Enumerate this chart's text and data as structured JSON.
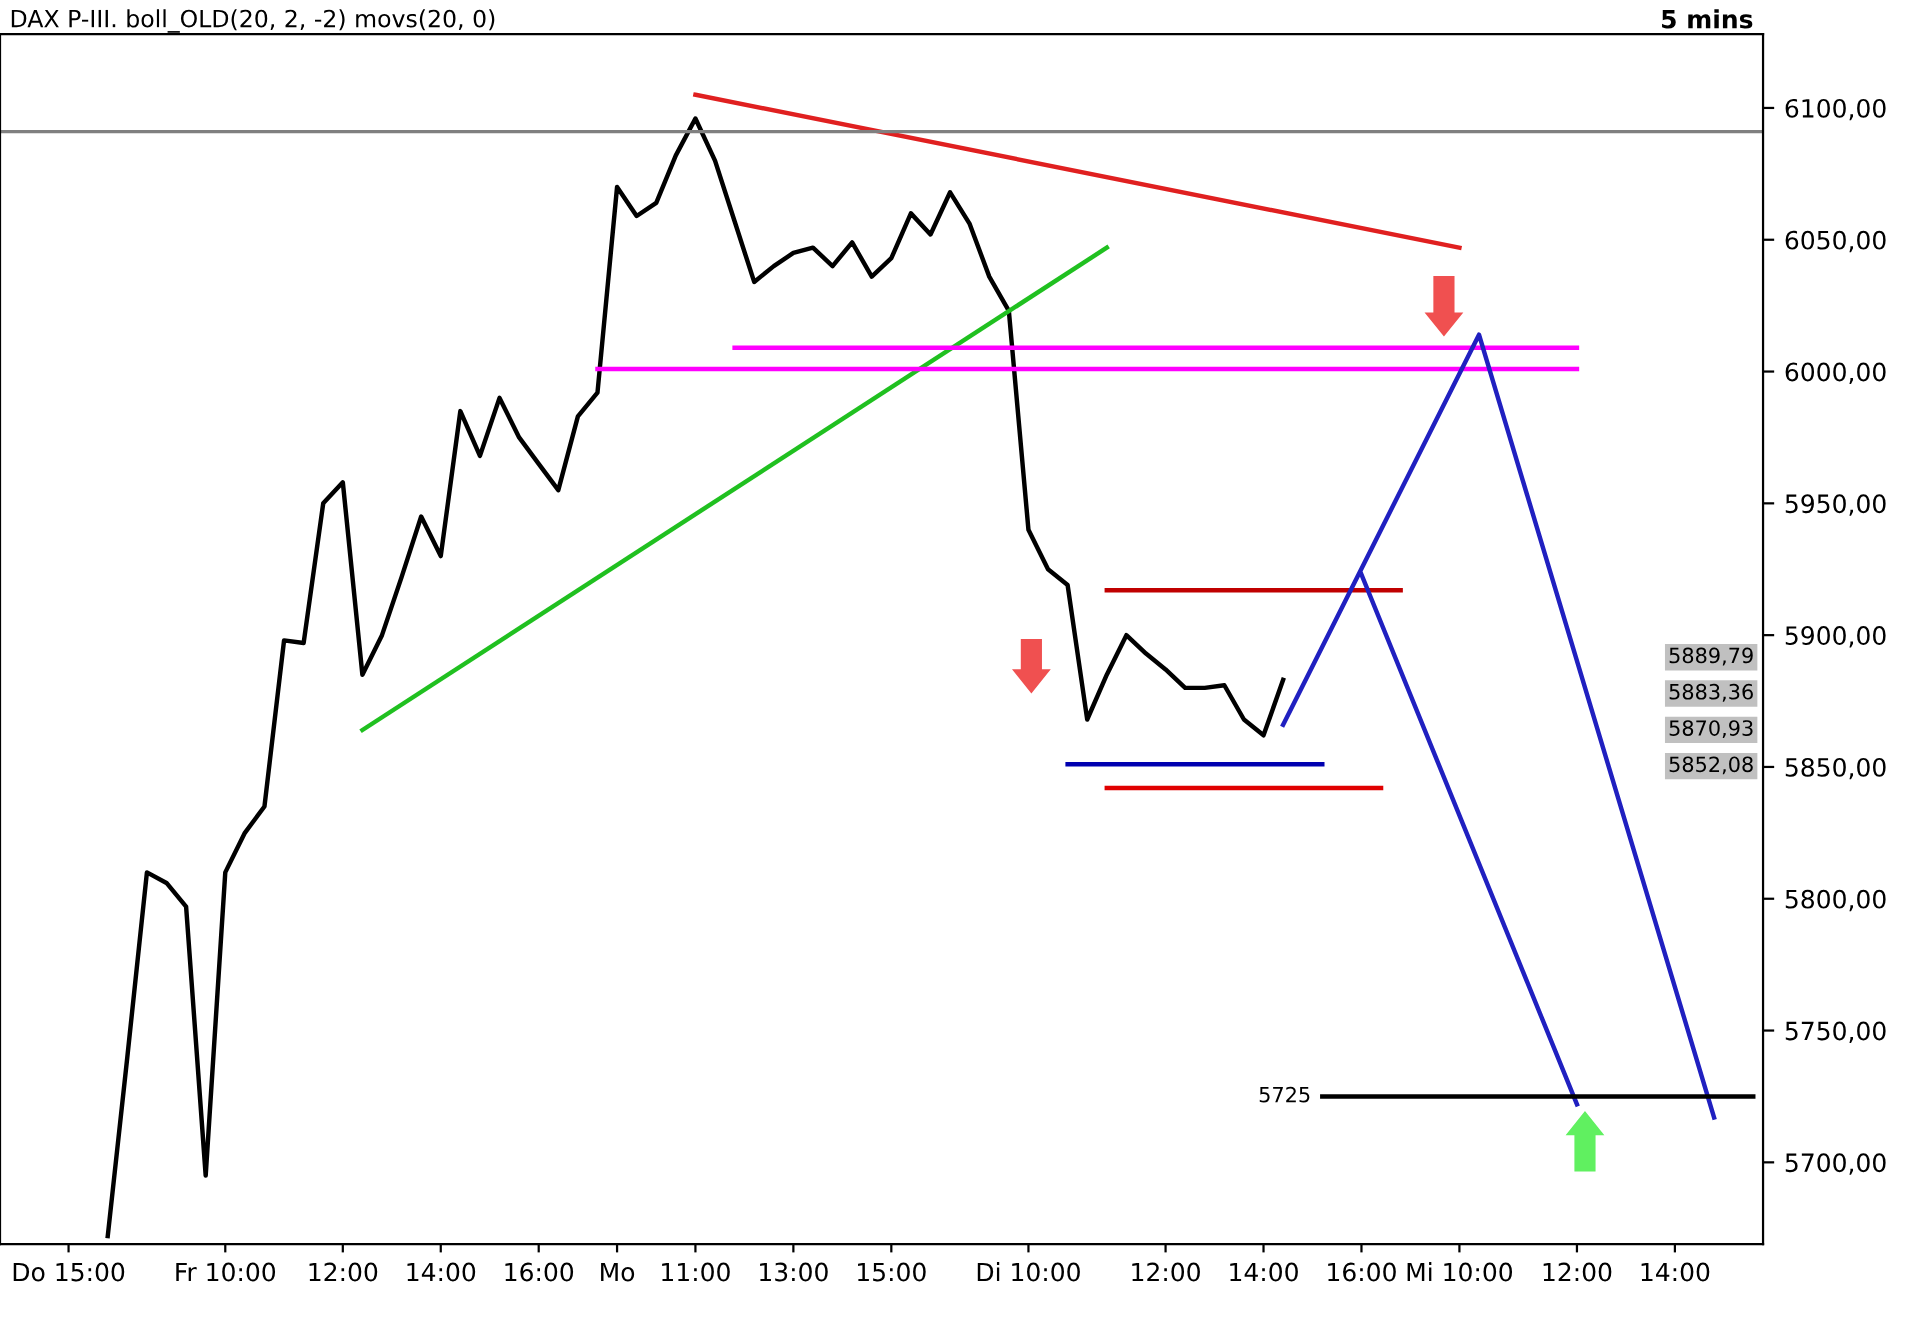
{
  "chart_data": {
    "type": "line",
    "title": "DAX P-III. boll_OLD(20, 2, -2) movs(20, 0)",
    "subtitle": "5 mins",
    "categories": [
      null,
      null,
      null,
      "Do 15:00",
      null,
      null,
      null,
      null,
      null,
      null,
      null,
      "Fr 10:00",
      null,
      null,
      null,
      null,
      null,
      "12:00",
      null,
      null,
      null,
      null,
      "14:00",
      null,
      null,
      null,
      null,
      "16:00",
      null,
      null,
      null,
      "Mo",
      null,
      null,
      null,
      "11:00",
      null,
      null,
      null,
      null,
      "13:00",
      null,
      null,
      null,
      null,
      "15:00",
      null,
      null,
      null,
      null,
      null,
      null,
      "Di 10:00",
      null,
      null,
      null,
      null,
      null,
      null,
      "12:00",
      null,
      null,
      null,
      null,
      "14:00",
      null,
      null,
      null,
      null,
      "16:00",
      null,
      null,
      null,
      null,
      "Mi 10:00",
      null,
      null,
      null,
      null,
      null,
      "12:00",
      null,
      null,
      null,
      null,
      "14:00",
      null,
      null,
      null,
      null
    ],
    "ylim": [
      5669,
      6128
    ],
    "yticks": [
      {
        "value": 5700,
        "label": "5700,00"
      },
      {
        "value": 5750,
        "label": "5750,00"
      },
      {
        "value": 5800,
        "label": "5800,00"
      },
      {
        "value": 5850,
        "label": "5850,00"
      },
      {
        "value": 5900,
        "label": "5900,00"
      },
      {
        "value": 5950,
        "label": "5950,00"
      },
      {
        "value": 6000,
        "label": "6000,00"
      },
      {
        "value": 6050,
        "label": "6050,00"
      },
      {
        "value": 6100,
        "label": "6100,00"
      }
    ],
    "grid": false,
    "legend": false,
    "marker": "none",
    "series": [
      {
        "color": "#000000",
        "values": [
          null,
          null,
          null,
          null,
          null,
          5672,
          5740,
          5810,
          5806,
          5797,
          5695,
          5810,
          5825,
          5835,
          5898,
          5897,
          5950,
          5958,
          5885,
          5900,
          5922,
          5945,
          5930,
          5985,
          5968,
          5990,
          5975,
          5965,
          5955,
          5983,
          5992,
          6070,
          6059,
          6064,
          6082,
          6096,
          6080,
          6057,
          6034,
          6040,
          6045,
          6047,
          6040,
          6049,
          6036,
          6043,
          6060,
          6052,
          6068,
          6056,
          6036,
          6023,
          5940,
          5925,
          5919,
          5868,
          5885,
          5900,
          5893,
          5887,
          5880,
          5880,
          5881,
          5868,
          5862,
          5883,
          null,
          null,
          null,
          null,
          null,
          null,
          null,
          null,
          null,
          null,
          null,
          null,
          null,
          null,
          null,
          null,
          null,
          null,
          null,
          null,
          null,
          null,
          null,
          null
        ]
      },
      {
        "color": "#e02020",
        "values": [
          null,
          null,
          null,
          null,
          null,
          null,
          null,
          null,
          null,
          null,
          null,
          null,
          null,
          null,
          null,
          null,
          null,
          null,
          null,
          null,
          null,
          null,
          null,
          null,
          null,
          null,
          null,
          null,
          null,
          null,
          null,
          null,
          null,
          null,
          null,
          6105,
          null,
          null,
          null,
          null,
          null,
          null,
          null,
          null,
          null,
          null,
          null,
          null,
          null,
          null,
          null,
          null,
          null,
          null,
          null,
          null,
          null,
          null,
          null,
          null,
          null,
          null,
          null,
          null,
          null,
          null,
          null,
          null,
          null,
          null,
          null,
          null,
          null,
          null,
          6047,
          null,
          null,
          null,
          null,
          null,
          null,
          null,
          null,
          null,
          null,
          null,
          null,
          null,
          null,
          null
        ]
      },
      {
        "color": "#20c020",
        "values": [
          null,
          null,
          null,
          null,
          null,
          null,
          null,
          null,
          null,
          null,
          null,
          null,
          null,
          null,
          null,
          null,
          null,
          null,
          5864,
          null,
          null,
          null,
          null,
          null,
          null,
          null,
          null,
          null,
          null,
          null,
          null,
          null,
          null,
          null,
          null,
          null,
          null,
          null,
          null,
          null,
          null,
          null,
          null,
          null,
          null,
          null,
          null,
          null,
          null,
          null,
          null,
          null,
          null,
          null,
          null,
          null,
          6047,
          null,
          null,
          null,
          null,
          null,
          null,
          null,
          null,
          null,
          null,
          null,
          null,
          null,
          null,
          null,
          null,
          null,
          null,
          null,
          null,
          null,
          null,
          null,
          null,
          null,
          null,
          null,
          null,
          null,
          null,
          null,
          null,
          null
        ]
      },
      {
        "color": "#ff00ff",
        "values": [
          null,
          null,
          null,
          null,
          null,
          null,
          null,
          null,
          null,
          null,
          null,
          null,
          null,
          null,
          null,
          null,
          null,
          null,
          null,
          null,
          null,
          null,
          null,
          null,
          null,
          null,
          null,
          null,
          null,
          null,
          null,
          null,
          null,
          null,
          null,
          null,
          null,
          6009,
          null,
          null,
          null,
          null,
          null,
          null,
          null,
          null,
          null,
          null,
          null,
          null,
          null,
          null,
          null,
          null,
          null,
          null,
          null,
          null,
          null,
          null,
          null,
          null,
          null,
          null,
          null,
          null,
          null,
          null,
          null,
          null,
          null,
          null,
          null,
          null,
          null,
          null,
          null,
          null,
          null,
          null,
          6009,
          null,
          null,
          null,
          null,
          null,
          null,
          null,
          null,
          null
        ]
      },
      {
        "color": "#ff00ff",
        "values": [
          null,
          null,
          null,
          null,
          null,
          null,
          null,
          null,
          null,
          null,
          null,
          null,
          null,
          null,
          null,
          null,
          null,
          null,
          null,
          null,
          null,
          null,
          null,
          null,
          null,
          null,
          null,
          null,
          null,
          null,
          6001,
          null,
          null,
          null,
          null,
          null,
          null,
          null,
          null,
          null,
          null,
          null,
          null,
          null,
          null,
          null,
          null,
          null,
          null,
          null,
          null,
          null,
          null,
          null,
          null,
          null,
          null,
          null,
          null,
          null,
          null,
          null,
          null,
          null,
          null,
          null,
          null,
          null,
          null,
          null,
          null,
          null,
          null,
          null,
          null,
          null,
          null,
          null,
          null,
          null,
          6001,
          null,
          null,
          null,
          null,
          null,
          null,
          null,
          null,
          null
        ]
      },
      {
        "color": "#c00000",
        "values": [
          null,
          null,
          null,
          null,
          null,
          null,
          null,
          null,
          null,
          null,
          null,
          null,
          null,
          null,
          null,
          null,
          null,
          null,
          null,
          null,
          null,
          null,
          null,
          null,
          null,
          null,
          null,
          null,
          null,
          null,
          null,
          null,
          null,
          null,
          null,
          null,
          null,
          null,
          null,
          null,
          null,
          null,
          null,
          null,
          null,
          null,
          null,
          null,
          null,
          null,
          null,
          null,
          null,
          null,
          null,
          null,
          5917,
          null,
          null,
          null,
          null,
          null,
          null,
          null,
          null,
          null,
          null,
          null,
          null,
          null,
          null,
          5917,
          null,
          null,
          null,
          null,
          null,
          null,
          null,
          null,
          null,
          null,
          null,
          null,
          null,
          null,
          null,
          null,
          null,
          null
        ]
      },
      {
        "color": "#0000b0",
        "values": [
          null,
          null,
          null,
          null,
          null,
          null,
          null,
          null,
          null,
          null,
          null,
          null,
          null,
          null,
          null,
          null,
          null,
          null,
          null,
          null,
          null,
          null,
          null,
          null,
          null,
          null,
          null,
          null,
          null,
          null,
          null,
          null,
          null,
          null,
          null,
          null,
          null,
          null,
          null,
          null,
          null,
          null,
          null,
          null,
          null,
          null,
          null,
          null,
          null,
          null,
          null,
          null,
          null,
          null,
          5851,
          null,
          null,
          null,
          null,
          null,
          null,
          null,
          null,
          null,
          null,
          null,
          null,
          5851,
          null,
          null,
          null,
          null,
          null,
          null,
          null,
          null,
          null,
          null,
          null,
          null,
          null,
          null,
          null,
          null,
          null,
          null,
          null,
          null,
          null,
          null
        ]
      },
      {
        "color": "#e00000",
        "values": [
          null,
          null,
          null,
          null,
          null,
          null,
          null,
          null,
          null,
          null,
          null,
          null,
          null,
          null,
          null,
          null,
          null,
          null,
          null,
          null,
          null,
          null,
          null,
          null,
          null,
          null,
          null,
          null,
          null,
          null,
          null,
          null,
          null,
          null,
          null,
          null,
          null,
          null,
          null,
          null,
          null,
          null,
          null,
          null,
          null,
          null,
          null,
          null,
          null,
          null,
          null,
          null,
          null,
          null,
          null,
          null,
          5842,
          null,
          null,
          null,
          null,
          null,
          null,
          null,
          null,
          null,
          null,
          null,
          null,
          null,
          5842,
          null,
          null,
          null,
          null,
          null,
          null,
          null,
          null,
          null,
          null,
          null,
          null,
          null,
          null,
          null,
          null,
          null,
          null,
          null
        ]
      },
      {
        "color": "#2020c0",
        "values": [
          null,
          null,
          null,
          null,
          null,
          null,
          null,
          null,
          null,
          null,
          null,
          null,
          null,
          null,
          null,
          null,
          null,
          null,
          null,
          null,
          null,
          null,
          null,
          null,
          null,
          null,
          null,
          null,
          null,
          null,
          null,
          null,
          null,
          null,
          null,
          null,
          null,
          null,
          null,
          null,
          null,
          null,
          null,
          null,
          null,
          null,
          null,
          null,
          null,
          null,
          null,
          null,
          null,
          null,
          null,
          null,
          null,
          null,
          null,
          null,
          null,
          null,
          null,
          null,
          null,
          5866,
          null,
          null,
          null,
          null,
          null,
          null,
          null,
          null,
          null,
          6014,
          null,
          null,
          null,
          null,
          null,
          null,
          null,
          null,
          null,
          null,
          null,
          5717,
          null,
          null
        ]
      },
      {
        "color": "#2020c0",
        "values": [
          null,
          null,
          null,
          null,
          null,
          null,
          null,
          null,
          null,
          null,
          null,
          null,
          null,
          null,
          null,
          null,
          null,
          null,
          null,
          null,
          null,
          null,
          null,
          null,
          null,
          null,
          null,
          null,
          null,
          null,
          null,
          null,
          null,
          null,
          null,
          null,
          null,
          null,
          null,
          null,
          null,
          null,
          null,
          null,
          null,
          null,
          null,
          null,
          null,
          null,
          null,
          null,
          null,
          null,
          null,
          null,
          null,
          null,
          null,
          null,
          null,
          null,
          null,
          null,
          null,
          null,
          null,
          null,
          null,
          5923,
          null,
          null,
          null,
          null,
          null,
          null,
          null,
          null,
          null,
          null,
          5722,
          null,
          null,
          null,
          null,
          null,
          null,
          null,
          null,
          null
        ]
      },
      {
        "name": "5725",
        "color": "#000000",
        "values": [
          null,
          null,
          null,
          null,
          null,
          null,
          null,
          null,
          null,
          null,
          null,
          null,
          null,
          null,
          null,
          null,
          null,
          null,
          null,
          null,
          null,
          null,
          null,
          null,
          null,
          null,
          null,
          null,
          null,
          null,
          null,
          null,
          null,
          null,
          null,
          null,
          null,
          null,
          null,
          null,
          null,
          null,
          null,
          null,
          null,
          null,
          null,
          null,
          null,
          null,
          null,
          null,
          null,
          null,
          null,
          null,
          null,
          null,
          null,
          null,
          null,
          null,
          null,
          null,
          null,
          null,
          null,
          5725,
          null,
          null,
          null,
          null,
          null,
          null,
          null,
          null,
          null,
          null,
          null,
          null,
          null,
          null,
          null,
          null,
          null,
          null,
          null,
          null,
          null,
          5725
        ]
      }
    ],
    "ref_lines": [
      {
        "axis": "y",
        "value": 6091,
        "color": "#808080"
      }
    ],
    "annotations": [
      "5889,79",
      "5883,36",
      "5870,93",
      "5852,08"
    ]
  }
}
